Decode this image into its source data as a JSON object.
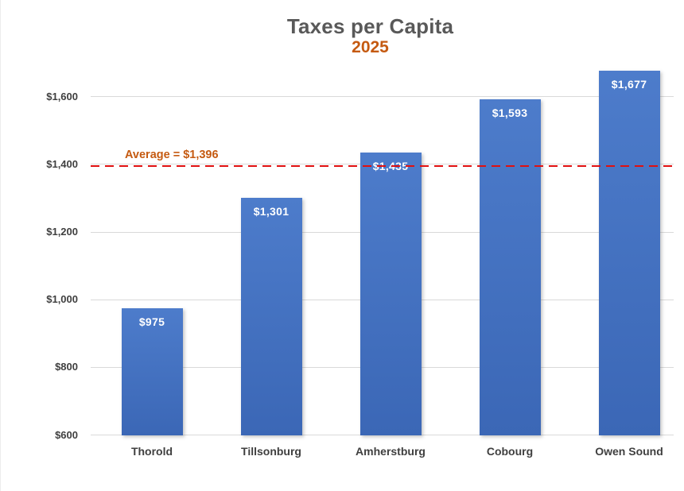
{
  "chart_data": {
    "type": "bar",
    "title": "Taxes per Capita",
    "subtitle": "2025",
    "categories": [
      "Thorold",
      "Tillsonburg",
      "Amherstburg",
      "Cobourg",
      "Owen Sound"
    ],
    "values": [
      975,
      1301,
      1435,
      1593,
      1677
    ],
    "bar_labels": [
      "$975",
      "$1,301",
      "$1,435",
      "$1,593",
      "$1,677"
    ],
    "y_axis": {
      "min": 600,
      "max": 1700,
      "tick_step": 200,
      "tick_values": [
        600,
        800,
        1000,
        1200,
        1400,
        1600
      ],
      "tick_labels": [
        "$600",
        "$800",
        "$1,000",
        "$1,200",
        "$1,400",
        "$1,600"
      ]
    },
    "average_line": {
      "value": 1396,
      "label": "Average = $1,396"
    },
    "grid": true,
    "legend": null,
    "colors": {
      "bar": "#4472c4",
      "bar_gradient_top": "#4d7ccb",
      "bar_gradient_bottom": "#3b67b6",
      "bar_label": "#ffffff",
      "title": "#595959",
      "subtitle": "#c55a11",
      "average_label": "#c55a11",
      "average_line": "#e01010",
      "gridline": "#d9d9d9",
      "tick_label": "#3f3f3f",
      "category_label": "#3f3f3f"
    }
  }
}
